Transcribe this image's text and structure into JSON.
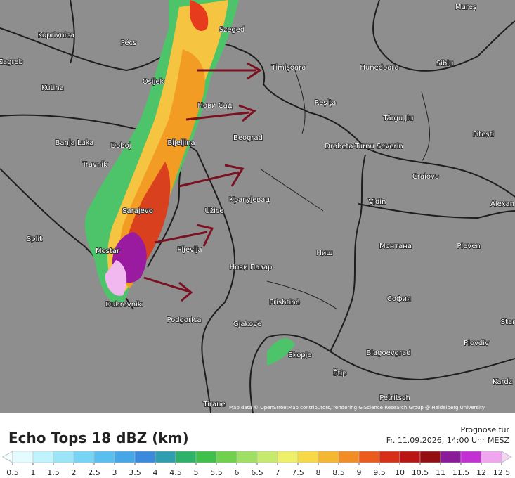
{
  "cities": [
    "Pécs",
    "Szeged",
    "Koprivnica",
    "Zagreb",
    "Osijek",
    "Kutina",
    "Timișoara",
    "Hunedoara",
    "Sibiu",
    "Mureș",
    "Нови Сад",
    "Reșița",
    "Târgu Jiu",
    "Banja Luka",
    "Doboj",
    "Bijeljina",
    "Beograd",
    "Drobeta-Turnu Severin",
    "Pitești",
    "Craiova",
    "Travnik",
    "Крагујевац",
    "Sarajevo",
    "Užice",
    "Vidin",
    "Split",
    "Mostar",
    "Pljevlja",
    "Ниш",
    "Монтана",
    "Pleven",
    "Нови Пазар",
    "Alexan",
    "Dubrovnik",
    "Prishtinë",
    "София",
    "Podgorica",
    "Gjakovë",
    "Star",
    "Plovdiv",
    "Skopje",
    "Blagoevgrad",
    "Kardz",
    "Štip",
    "Petritsch",
    "Tirane"
  ],
  "attribution": "Map data © OpenStreetMap contributors, rendering GIScience Research Group @ Heidelberg University",
  "legend": {
    "title": "Echo Tops 18 dBZ (km)",
    "ticks": [
      0.5,
      1,
      1.5,
      2,
      2.5,
      3,
      3.5,
      4,
      4.5,
      5,
      5.5,
      6,
      6.5,
      7,
      7.5,
      8,
      8.5,
      9,
      9.5,
      10,
      10.5,
      11,
      11.5,
      12,
      12.5
    ],
    "colors": [
      "#e4fcff",
      "#c0f3fb",
      "#9ae6f8",
      "#76d4f5",
      "#58bff0",
      "#45a6e8",
      "#3a8ade",
      "#2f9fb0",
      "#2eb26a",
      "#3fc04a",
      "#6fd14c",
      "#9de063",
      "#c6ea6d",
      "#eef06a",
      "#f6d848",
      "#f5b632",
      "#f28c24",
      "#ea5b1c",
      "#d83018",
      "#bb1414",
      "#930f12",
      "#8a1a9a",
      "#c330d4",
      "#f0a6ee"
    ]
  },
  "forecast": {
    "label": "Prognose für",
    "time": "Fr. 11.09.2026, 14:00 Uhr MESZ"
  }
}
